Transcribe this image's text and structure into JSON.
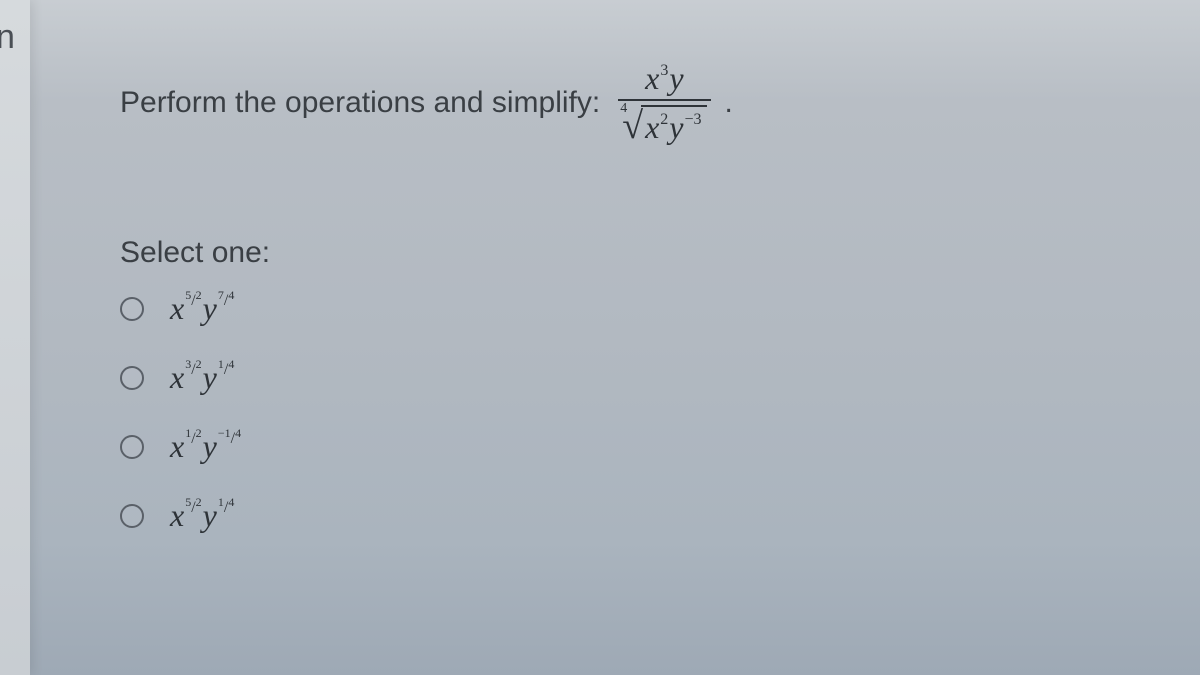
{
  "edge_letter": "n",
  "prompt": {
    "text": "Perform the operations and simplify:",
    "numerator": {
      "base1": "x",
      "exp1": "3",
      "base2": "y"
    },
    "denominator": {
      "root_index": "4",
      "rad_base1": "x",
      "rad_exp1": "2",
      "rad_base2": "y",
      "rad_exp2": "−3"
    },
    "period": "."
  },
  "select_label": "Select one:",
  "options": [
    {
      "b1": "x",
      "e1_top": "5",
      "e1_bot": "2",
      "b2": "y",
      "e2_top": "7",
      "e2_bot": "4",
      "e2_neg": ""
    },
    {
      "b1": "x",
      "e1_top": "3",
      "e1_bot": "2",
      "b2": "y",
      "e2_top": "1",
      "e2_bot": "4",
      "e2_neg": ""
    },
    {
      "b1": "x",
      "e1_top": "1",
      "e1_bot": "2",
      "b2": "y",
      "e2_top": "1",
      "e2_bot": "4",
      "e2_neg": "−"
    },
    {
      "b1": "x",
      "e1_top": "5",
      "e1_bot": "2",
      "b2": "y",
      "e2_top": "1",
      "e2_bot": "4",
      "e2_neg": ""
    }
  ],
  "colors": {
    "text": "#3a3f44",
    "math": "#2e3338",
    "radio_border": "#5a6068",
    "bg_top": "#c8cdd2",
    "bg_bottom": "#9ea9b5"
  },
  "fontsizes": {
    "prompt": 30,
    "math": 32,
    "sup": 16,
    "root_index": 14
  }
}
